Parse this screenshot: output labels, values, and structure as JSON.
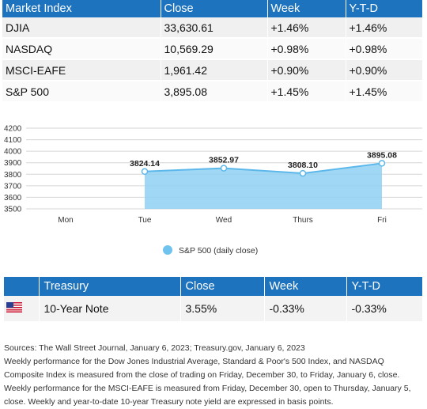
{
  "market_table": {
    "headers": [
      "Market Index",
      "Close",
      "Week",
      "Y-T-D"
    ],
    "rows": [
      {
        "name": "DJIA",
        "close": "33,630.61",
        "week": "+1.46%",
        "ytd": "+1.46%"
      },
      {
        "name": "NASDAQ",
        "close": "10,569.29",
        "week": "+0.98%",
        "ytd": "+0.98%"
      },
      {
        "name": "MSCI-EAFE",
        "close": "1,961.42",
        "week": "+0.90%",
        "ytd": "+0.90%"
      },
      {
        "name": "S&P 500",
        "close": "3,895.08",
        "week": "+1.45%",
        "ytd": "+1.45%"
      }
    ]
  },
  "chart_data": {
    "type": "area",
    "categories": [
      "Mon",
      "Tue",
      "Wed",
      "Thurs",
      "Fri"
    ],
    "series": [
      {
        "name": "S&P 500 (daily close)",
        "values": [
          null,
          3824.14,
          3852.97,
          3808.1,
          3895.08
        ],
        "labels": [
          "",
          "3824.14",
          "3852.97",
          "3808.10",
          "3895.08"
        ]
      }
    ],
    "ylim": [
      3500,
      4200
    ],
    "yticks": [
      3500,
      3600,
      3700,
      3800,
      3900,
      4000,
      4100,
      4200
    ],
    "grid": true,
    "legend": "bottom",
    "colors": {
      "fill": "#8fd0f2",
      "line": "#5cb8ea",
      "marker": "#6fc3ee",
      "grid": "#d6d6d6"
    }
  },
  "treasury_table": {
    "headers": [
      "Treasury",
      "Close",
      "Week",
      "Y-T-D"
    ],
    "row": {
      "name": "10-Year Note",
      "close": "3.55%",
      "week": "-0.33%",
      "ytd": "-0.33%"
    }
  },
  "notes": {
    "sources": "Sources: The Wall Street Journal, January 6, 2023; Treasury.gov, January 6, 2023",
    "body": "Weekly performance for the Dow Jones Industrial Average, Standard & Poor's 500 Index, and NASDAQ Composite Index is measured from the close of trading on Friday, December 30, to Friday, January 6, close. Weekly performance for the MSCI-EAFE is measured from Friday, December 30, open to Thursday, January 5, close. Weekly and year-to-date 10-year Treasury note yield are expressed in basis points."
  },
  "colors": {
    "header": "#1e73be"
  }
}
